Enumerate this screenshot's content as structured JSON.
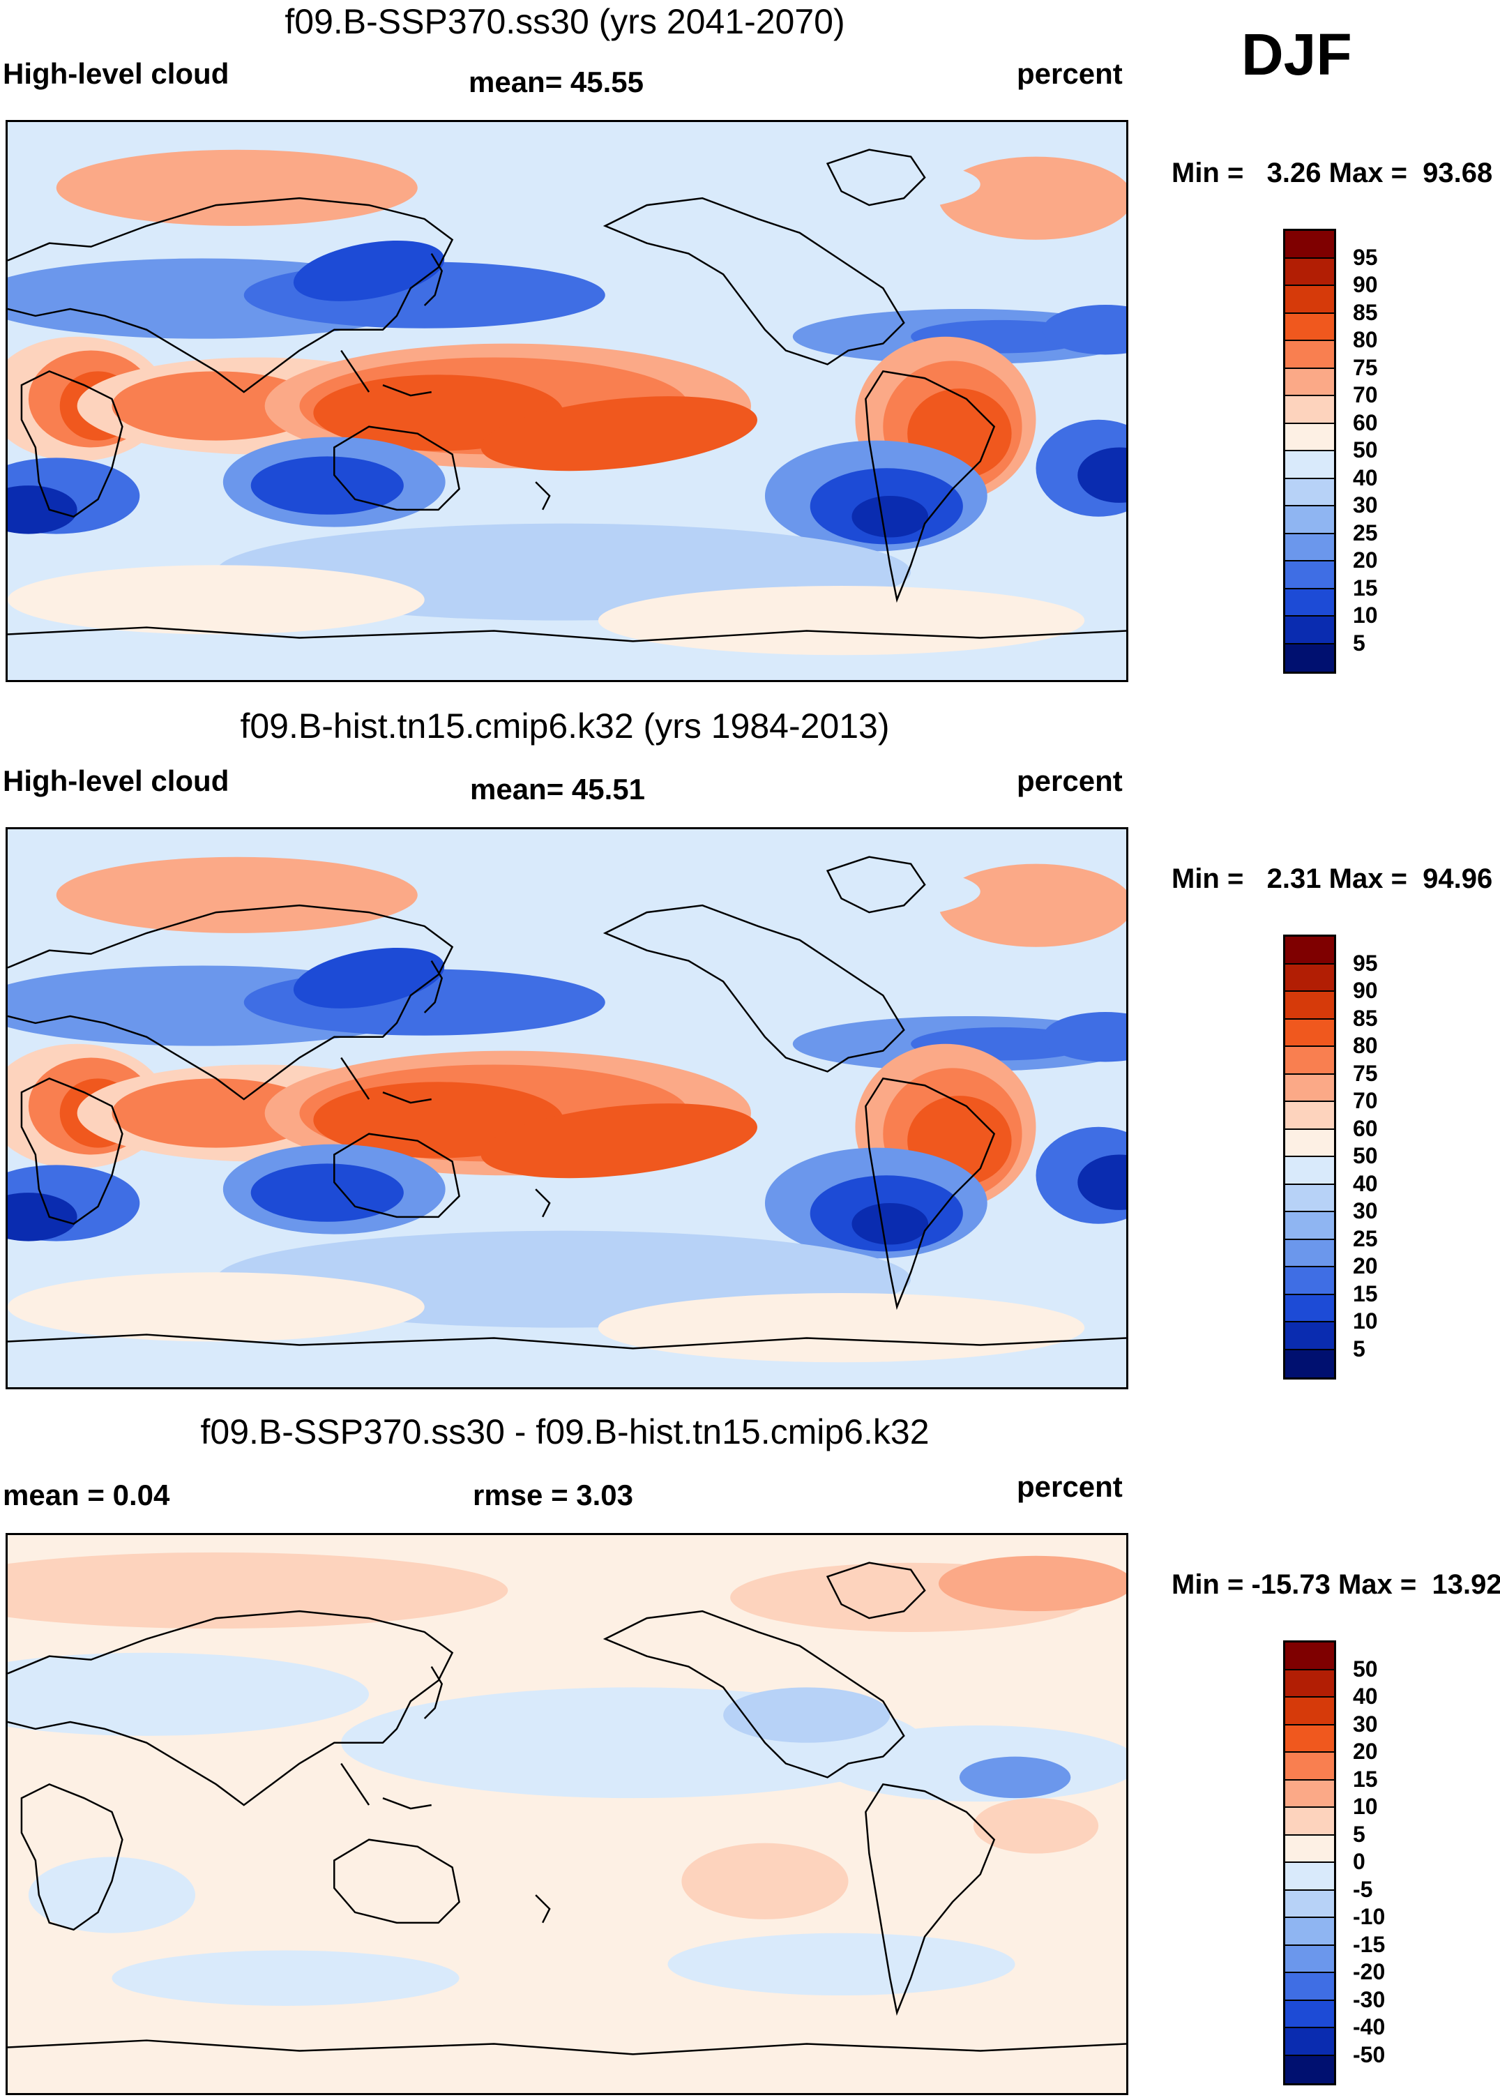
{
  "season": "DJF",
  "panels": [
    {
      "title": "f09.B-SSP370.ss30 (yrs 2041-2070)",
      "left_label": "High-level cloud",
      "center_label": "mean=  45.55",
      "units": "percent",
      "min_max": "Min =   3.26 Max =  93.68",
      "min": 3.26,
      "max": 93.68,
      "colorbar_labels": [
        "95",
        "90",
        "85",
        "80",
        "75",
        "70",
        "60",
        "50",
        "40",
        "30",
        "25",
        "20",
        "15",
        "10",
        "5"
      ]
    },
    {
      "title": "f09.B-hist.tn15.cmip6.k32 (yrs 1984-2013)",
      "left_label": "High-level cloud",
      "center_label": "mean=  45.51",
      "units": "percent",
      "min_max": "Min =   2.31 Max =  94.96",
      "min": 2.31,
      "max": 94.96,
      "colorbar_labels": [
        "95",
        "90",
        "85",
        "80",
        "75",
        "70",
        "60",
        "50",
        "40",
        "30",
        "25",
        "20",
        "15",
        "10",
        "5"
      ]
    },
    {
      "title": "f09.B-SSP370.ss30 - f09.B-hist.tn15.cmip6.k32",
      "left_label": "mean =   0.04",
      "center_label": "rmse =   3.03",
      "units": "percent",
      "min_max": "Min = -15.73 Max =  13.92",
      "min": -15.73,
      "max": 13.92,
      "colorbar_labels": [
        "50",
        "40",
        "30",
        "20",
        "15",
        "10",
        "5",
        "0",
        "-5",
        "-10",
        "-15",
        "-20",
        "-30",
        "-40",
        "-50"
      ]
    }
  ],
  "colors": {
    "palette": [
      "#7f0000",
      "#b21e04",
      "#d63a0a",
      "#f0581e",
      "#f97f50",
      "#fba987",
      "#fdd3bd",
      "#fdf0e4",
      "#d9eafb",
      "#b7d2f7",
      "#8fb5f2",
      "#6b97ec",
      "#3f6ee4",
      "#1d4bd6",
      "#0a2cb0",
      "#001070"
    ],
    "coast": "#000000"
  }
}
